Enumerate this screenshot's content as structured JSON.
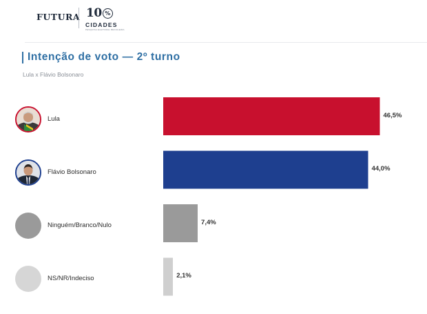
{
  "brand": {
    "name": "FUTURA",
    "logo_number": "10",
    "logo_percent": "%",
    "logo_word": "CIDADES",
    "logo_tagline": "PESQUISA ELEITORAL BRASILEIRA"
  },
  "title": "Intenção de voto — 2º turno",
  "subtitle": "Lula x Flávio Bolsonaro",
  "chart_data": {
    "type": "bar",
    "orientation": "horizontal",
    "categories": [
      "Lula",
      "Flávio Bolsonaro",
      "Ninguém/Branco/Nulo",
      "NS/NR/Indeciso"
    ],
    "values": [
      46.5,
      44.0,
      7.4,
      2.1
    ],
    "value_labels": [
      "46,5%",
      "44,0%",
      "7,4%",
      "2,1%"
    ],
    "colors": [
      "#c8102e",
      "#1e3f8f",
      "#9a9a9a",
      "#cfcfcf"
    ],
    "unit": "%",
    "grid": false,
    "legend": "none"
  },
  "avatars": [
    {
      "icon": "lula-photo-icon",
      "color": "#c8102e"
    },
    {
      "icon": "flavio-bolsonaro-photo-icon",
      "color": "#1e3f8f"
    },
    {
      "icon": "placeholder-avatar-icon",
      "color": "#9a9a9a"
    },
    {
      "icon": "placeholder-avatar-icon",
      "color": "#d6d6d6"
    }
  ]
}
